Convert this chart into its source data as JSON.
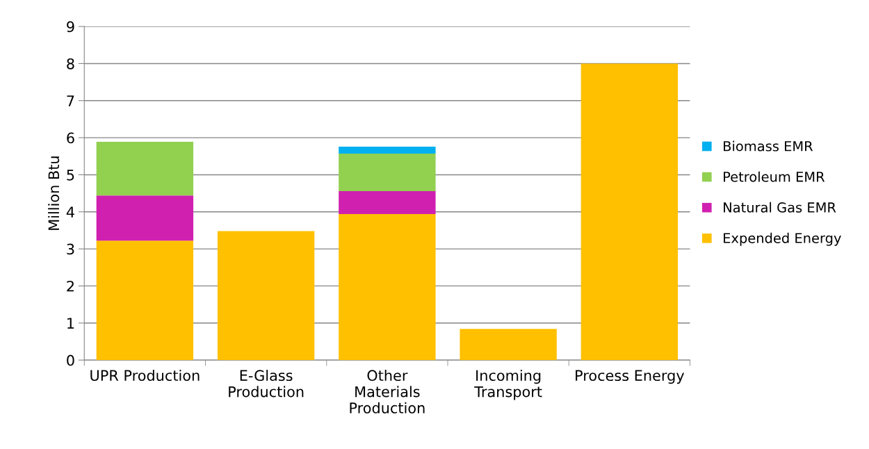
{
  "chart_data": {
    "type": "bar",
    "stacked": true,
    "ylabel": "Million Btu",
    "categories": [
      "UPR Production",
      "E-Glass\nProduction",
      "Other\nMaterials\nProduction",
      "Incoming\nTransport",
      "Process Energy"
    ],
    "series": [
      {
        "name": "Expended Energy",
        "color": "#ffc000",
        "values": [
          3.22,
          3.48,
          3.94,
          0.84,
          8.0
        ]
      },
      {
        "name": "Natural Gas EMR",
        "color": "#d020b0",
        "values": [
          1.22,
          0,
          0.62,
          0,
          0
        ]
      },
      {
        "name": "Petroleum EMR",
        "color": "#92d050",
        "values": [
          1.45,
          0,
          1.01,
          0,
          0
        ]
      },
      {
        "name": "Biomass EMR",
        "color": "#00b0f0",
        "values": [
          0,
          0,
          0.19,
          0,
          0
        ]
      }
    ],
    "ylim": [
      0,
      9
    ],
    "yticks": [
      0,
      1,
      2,
      3,
      4,
      5,
      6,
      7,
      8,
      9
    ],
    "grid": "y",
    "legend": "right"
  }
}
